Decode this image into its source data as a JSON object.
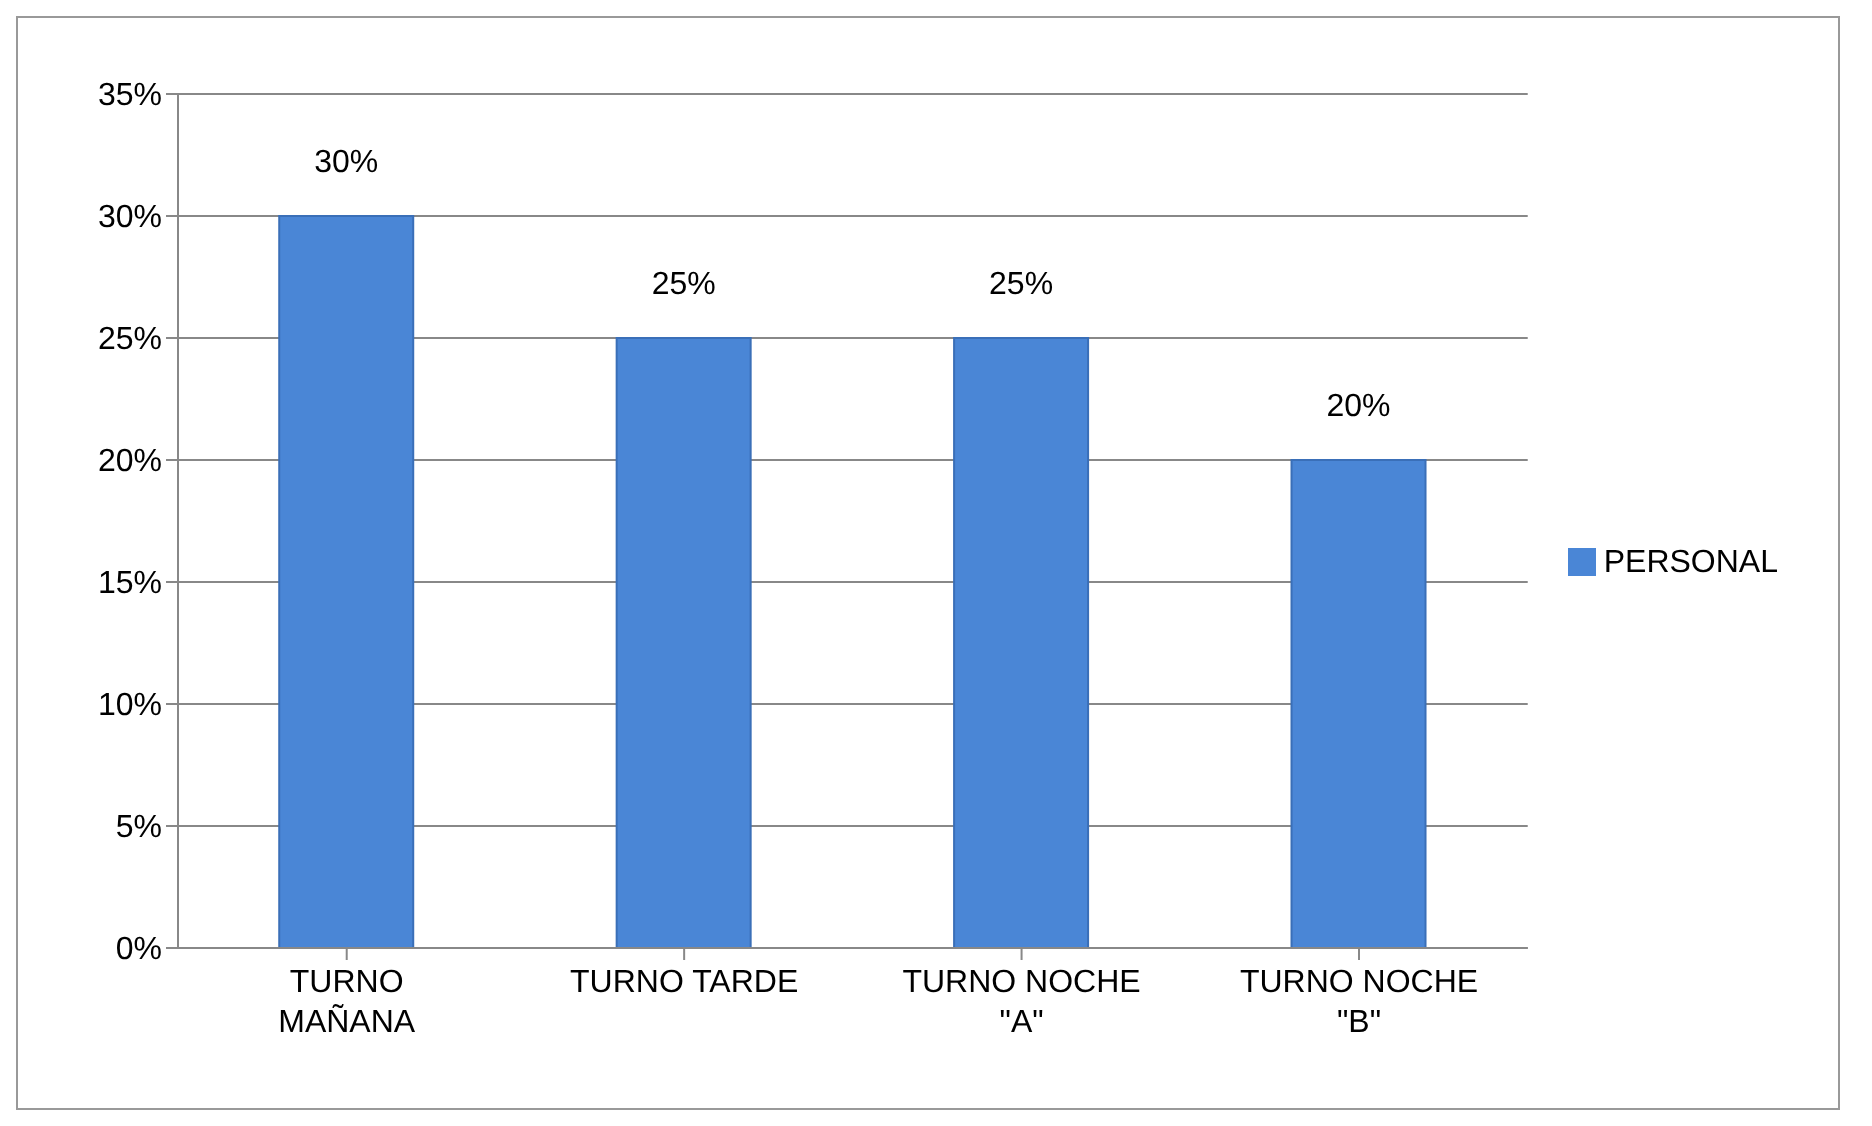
{
  "chart_data": {
    "type": "bar",
    "categories": [
      "TURNO MAÑANA",
      "TURNO TARDE",
      "TURNO NOCHE \"A\"",
      "TURNO NOCHE \"B\""
    ],
    "series": [
      {
        "name": "PERSONAL",
        "color": "#4a86d6",
        "values": [
          30,
          25,
          25,
          20
        ],
        "value_labels": [
          "30%",
          "25%",
          "25%",
          "20%"
        ]
      }
    ],
    "ylim": [
      0,
      35
    ],
    "yticks": [
      {
        "value": 0,
        "label": "0%"
      },
      {
        "value": 5,
        "label": "5%"
      },
      {
        "value": 10,
        "label": "10%"
      },
      {
        "value": 15,
        "label": "15%"
      },
      {
        "value": 20,
        "label": "20%"
      },
      {
        "value": 25,
        "label": "25%"
      },
      {
        "value": 30,
        "label": "30%"
      },
      {
        "value": 35,
        "label": "35%"
      }
    ],
    "grid": "y",
    "legend": "right"
  }
}
